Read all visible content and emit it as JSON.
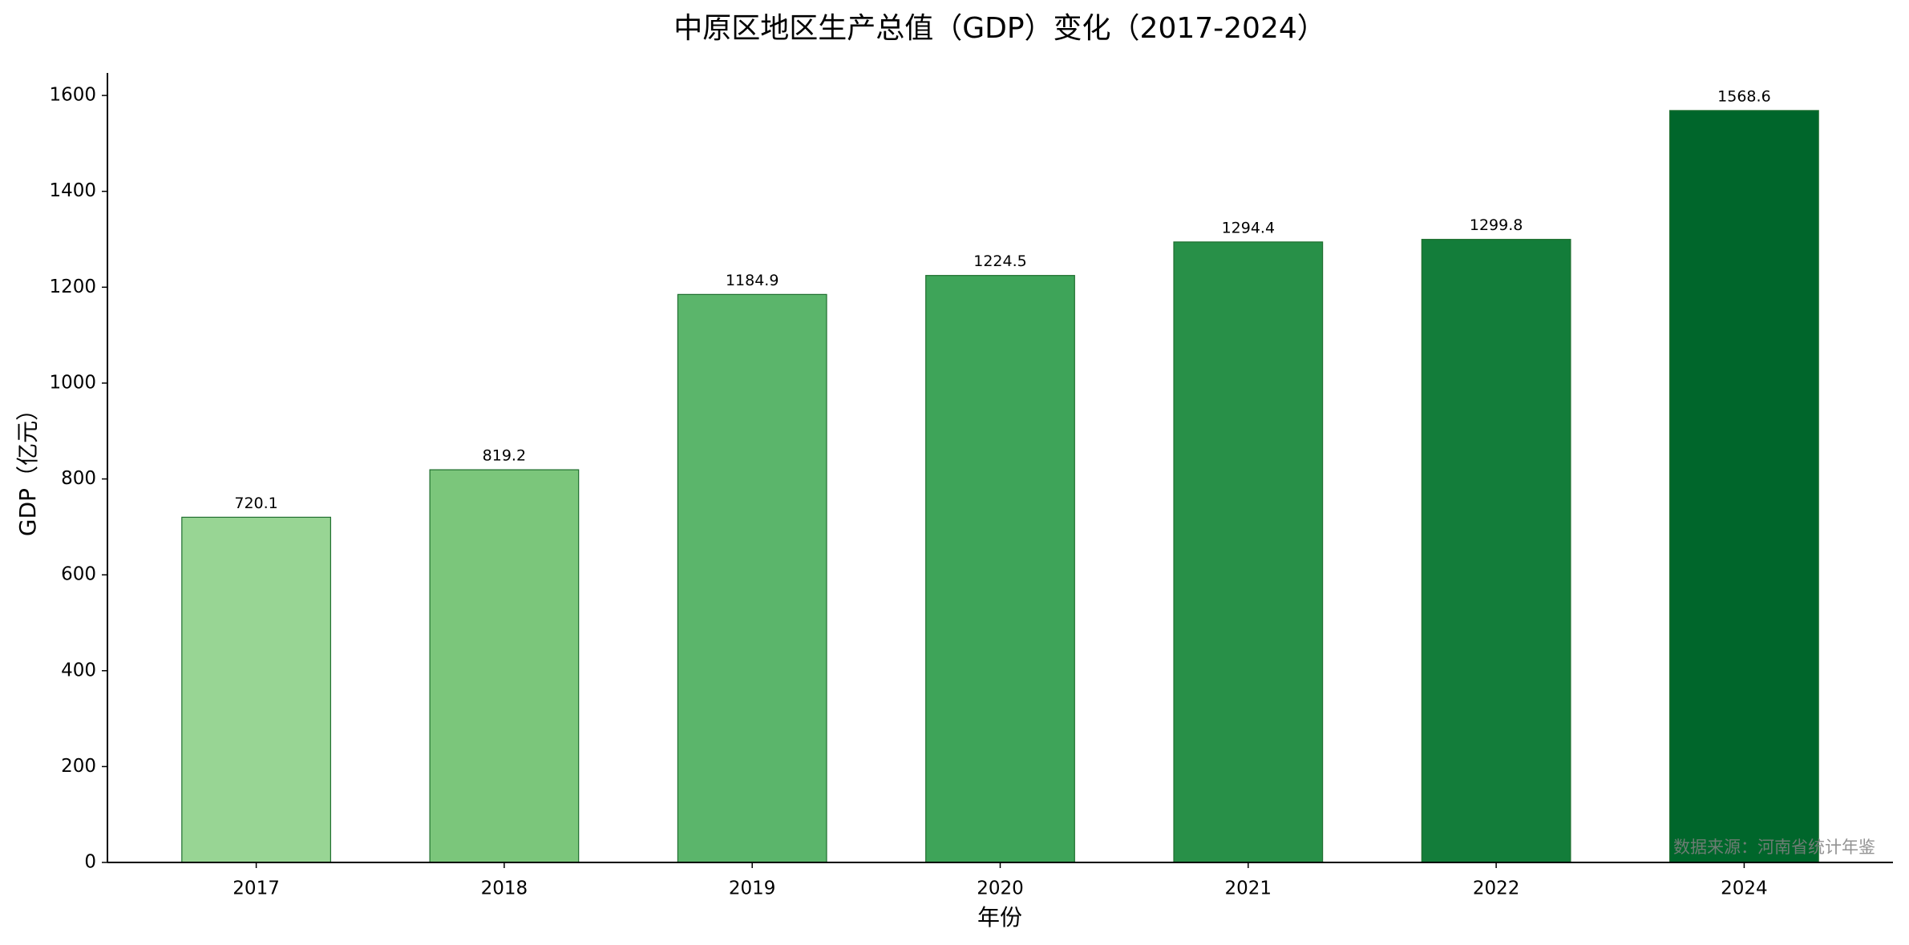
{
  "chart_data": {
    "type": "bar",
    "title": "中原区地区生产总值（GDP）变化（2017-2024）",
    "x_label": "年份",
    "y_label": "GDP（亿元）",
    "categories": [
      "2017",
      "2018",
      "2019",
      "2020",
      "2021",
      "2022",
      "2024"
    ],
    "values": [
      720.1,
      819.2,
      1184.9,
      1224.5,
      1294.4,
      1299.8,
      1568.6
    ],
    "colors": [
      "#98d594",
      "#7bc67b",
      "#5bb56b",
      "#3ea459",
      "#289048",
      "#137d3a",
      "#00662b"
    ],
    "edge_color": "#1e6e2e",
    "ylim": [
      0,
      1647
    ],
    "yticks": [
      0,
      200,
      400,
      600,
      800,
      1000,
      1200,
      1400,
      1600
    ],
    "annotation": "数据来源：河南省统计年鉴"
  }
}
